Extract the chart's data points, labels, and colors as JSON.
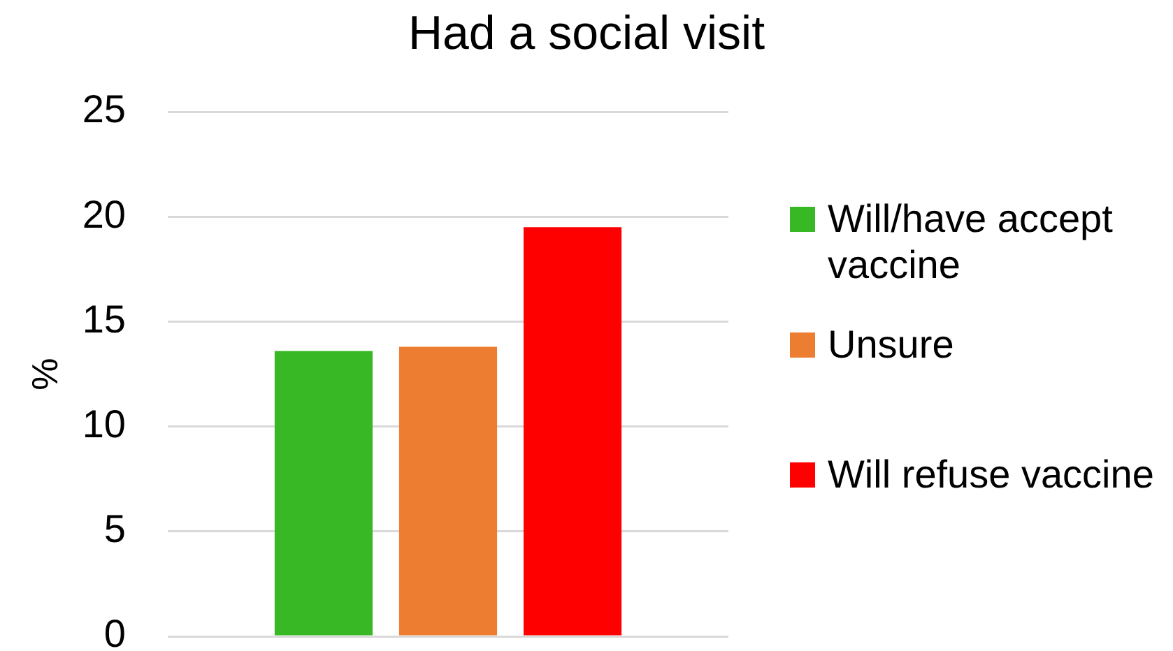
{
  "chart_data": {
    "type": "bar",
    "title": "Had a social visit",
    "ylabel": "%",
    "categories": [
      null
    ],
    "series": [
      {
        "name": "Will/have accept vaccine",
        "color": "#38b824",
        "values": [
          13.6
        ]
      },
      {
        "name": "Unsure",
        "color": "#ed7d31",
        "values": [
          13.8
        ]
      },
      {
        "name": "Will refuse vaccine",
        "color": "#ff0000",
        "values": [
          19.5
        ]
      }
    ],
    "ylim": [
      0,
      25
    ],
    "yticks": [
      0,
      5,
      10,
      15,
      20,
      25
    ],
    "grid": "y",
    "legend": "right"
  }
}
